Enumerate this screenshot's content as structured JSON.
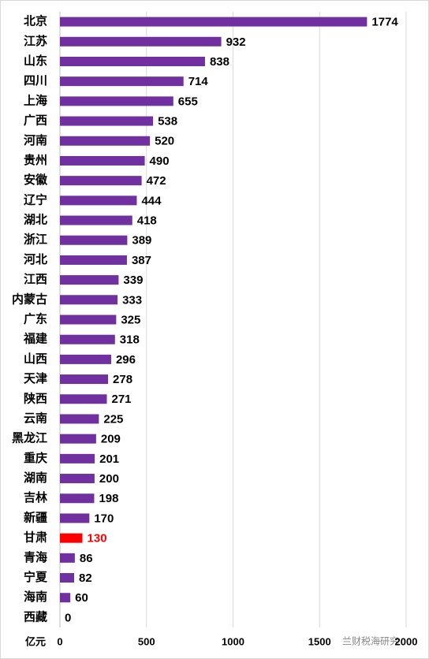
{
  "chart_data": {
    "type": "barh",
    "unit_label": "亿元",
    "watermark": "兰财税海研究",
    "categories": [
      "北京",
      "江苏",
      "山东",
      "四川",
      "上海",
      "广西",
      "河南",
      "贵州",
      "安徽",
      "辽宁",
      "湖北",
      "浙江",
      "河北",
      "江西",
      "内蒙古",
      "广东",
      "福建",
      "山西",
      "天津",
      "陕西",
      "云南",
      "黑龙江",
      "重庆",
      "湖南",
      "吉林",
      "新疆",
      "甘肃",
      "青海",
      "宁夏",
      "海南",
      "西藏"
    ],
    "values": [
      1774,
      932,
      838,
      714,
      655,
      538,
      520,
      490,
      472,
      444,
      418,
      389,
      387,
      339,
      333,
      325,
      318,
      296,
      278,
      271,
      225,
      209,
      201,
      200,
      198,
      170,
      130,
      86,
      82,
      60,
      0
    ],
    "colors": [
      "#7030a0",
      "#7030a0",
      "#7030a0",
      "#7030a0",
      "#7030a0",
      "#7030a0",
      "#7030a0",
      "#7030a0",
      "#7030a0",
      "#7030a0",
      "#7030a0",
      "#7030a0",
      "#7030a0",
      "#7030a0",
      "#7030a0",
      "#7030a0",
      "#7030a0",
      "#7030a0",
      "#7030a0",
      "#7030a0",
      "#7030a0",
      "#7030a0",
      "#7030a0",
      "#7030a0",
      "#7030a0",
      "#7030a0",
      "#ff0000",
      "#7030a0",
      "#7030a0",
      "#7030a0",
      "#7030a0"
    ],
    "label_colors": [
      "#000000",
      "#000000",
      "#000000",
      "#000000",
      "#000000",
      "#000000",
      "#000000",
      "#000000",
      "#000000",
      "#000000",
      "#000000",
      "#000000",
      "#000000",
      "#000000",
      "#000000",
      "#000000",
      "#000000",
      "#000000",
      "#000000",
      "#000000",
      "#000000",
      "#000000",
      "#000000",
      "#000000",
      "#000000",
      "#000000",
      "#ff0000",
      "#000000",
      "#000000",
      "#000000",
      "#000000"
    ],
    "xlim": [
      0,
      2000
    ],
    "xticks": [
      0,
      500,
      1000,
      1500,
      2000
    ],
    "grid": true
  }
}
